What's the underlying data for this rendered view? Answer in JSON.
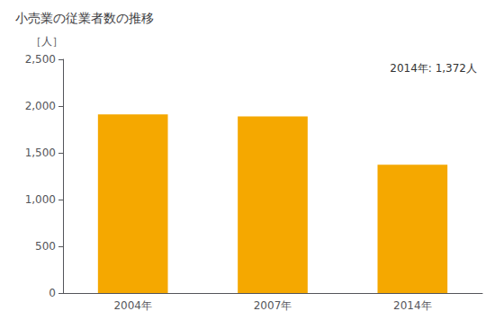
{
  "chart_data": {
    "type": "bar",
    "title": "小売業の従業者数の推移",
    "ylabel": "［人］",
    "categories": [
      "2004年",
      "2007年",
      "2014年"
    ],
    "values": [
      1910,
      1890,
      1372
    ],
    "color": "#F5A800",
    "annotation": "2014年: 1,372人",
    "ylim": [
      0,
      2500
    ],
    "yticks": [
      0,
      500,
      {
        "value": 1000,
        "label": "1,000"
      },
      {
        "value": 1500,
        "label": "1,500"
      },
      {
        "value": 2000,
        "label": "2,000"
      },
      {
        "value": 2500,
        "label": "2,500"
      }
    ],
    "grid": false
  }
}
